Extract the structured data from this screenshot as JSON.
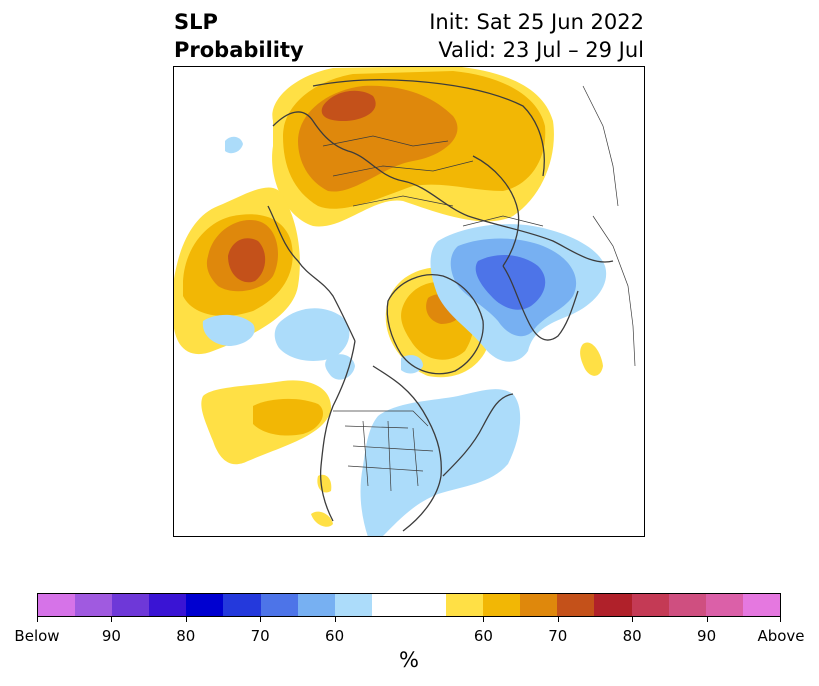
{
  "title": {
    "line1": "SLP",
    "line2": "Probability",
    "init": "Init: Sat 25 Jun 2022",
    "valid": "Valid: 23 Jul – 29 Jul"
  },
  "map": {
    "projection": "polar-stereographic-north",
    "regions": [
      {
        "name": "northern-eurasia",
        "category": "above-normal",
        "max_probability": "70-75"
      },
      {
        "name": "northeast-pacific",
        "category": "above-normal",
        "max_probability": "70-75"
      },
      {
        "name": "greenland",
        "category": "above-normal",
        "max_probability": "65-70"
      },
      {
        "name": "central-pacific",
        "category": "above-normal",
        "max_probability": "60-65"
      },
      {
        "name": "east-asia-sea-of-okhotsk",
        "category": "below-normal",
        "max_probability": "65-70"
      },
      {
        "name": "eastern-north-america-atlantic",
        "category": "below-normal",
        "max_probability": "55-60"
      },
      {
        "name": "canadian-arctic",
        "category": "below-normal",
        "max_probability": "55-60"
      }
    ]
  },
  "colorbar": {
    "below_colors": [
      "#d673e8",
      "#a05ae0",
      "#6e38d8",
      "#3a14d4",
      "#0000d0",
      "#2439dc",
      "#4d74e8",
      "#77b0f2",
      "#acdcfa"
    ],
    "neutral_color": "#ffffff",
    "above_colors": [
      "#ffe045",
      "#f2b705",
      "#df880c",
      "#c4511a",
      "#b0212a",
      "#c43a55",
      "#cf4f80",
      "#db60a8",
      "#e578e0"
    ],
    "tick_labels": [
      "Below",
      "90",
      "80",
      "70",
      "60",
      "60",
      "70",
      "80",
      "90",
      "Above"
    ],
    "units": "%"
  }
}
